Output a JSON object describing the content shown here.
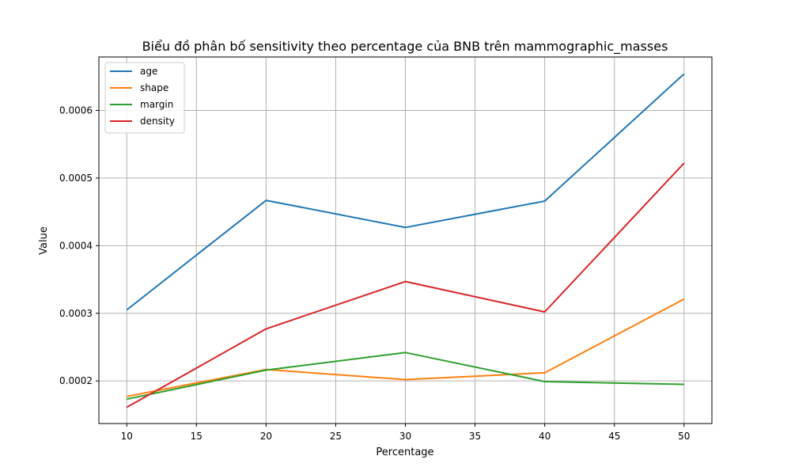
{
  "chart_data": {
    "type": "line",
    "title": "Biểu đồ phân bố sensitivity theo percentage của BNB trên mammographic_masses",
    "xlabel": "Percentage",
    "ylabel": "Value",
    "x": [
      10,
      20,
      30,
      40,
      50
    ],
    "xlim": [
      8,
      52
    ],
    "ylim": [
      0.000137,
      0.000679
    ],
    "x_ticks": [
      10,
      15,
      20,
      25,
      30,
      35,
      40,
      45,
      50
    ],
    "y_ticks": [
      0.0002,
      0.0003,
      0.0004,
      0.0005,
      0.0006
    ],
    "x_tick_labels": [
      "10",
      "15",
      "20",
      "25",
      "30",
      "35",
      "40",
      "45",
      "50"
    ],
    "y_tick_labels": [
      "0.0002",
      "0.0003",
      "0.0004",
      "0.0005",
      "0.0006"
    ],
    "grid": true,
    "legend_position": "top-left",
    "series": [
      {
        "name": "age",
        "color": "#1f77b4",
        "values": [
          0.000305,
          0.000467,
          0.000427,
          0.000466,
          0.000654
        ]
      },
      {
        "name": "shape",
        "color": "#ff7f0e",
        "values": [
          0.000177,
          0.000217,
          0.000202,
          0.000212,
          0.000321
        ]
      },
      {
        "name": "margin",
        "color": "#2ca02c",
        "values": [
          0.000173,
          0.000216,
          0.000242,
          0.000199,
          0.000195
        ]
      },
      {
        "name": "density",
        "color": "#d62728",
        "values": [
          0.000161,
          0.000277,
          0.000347,
          0.000302,
          0.000522
        ]
      }
    ]
  }
}
